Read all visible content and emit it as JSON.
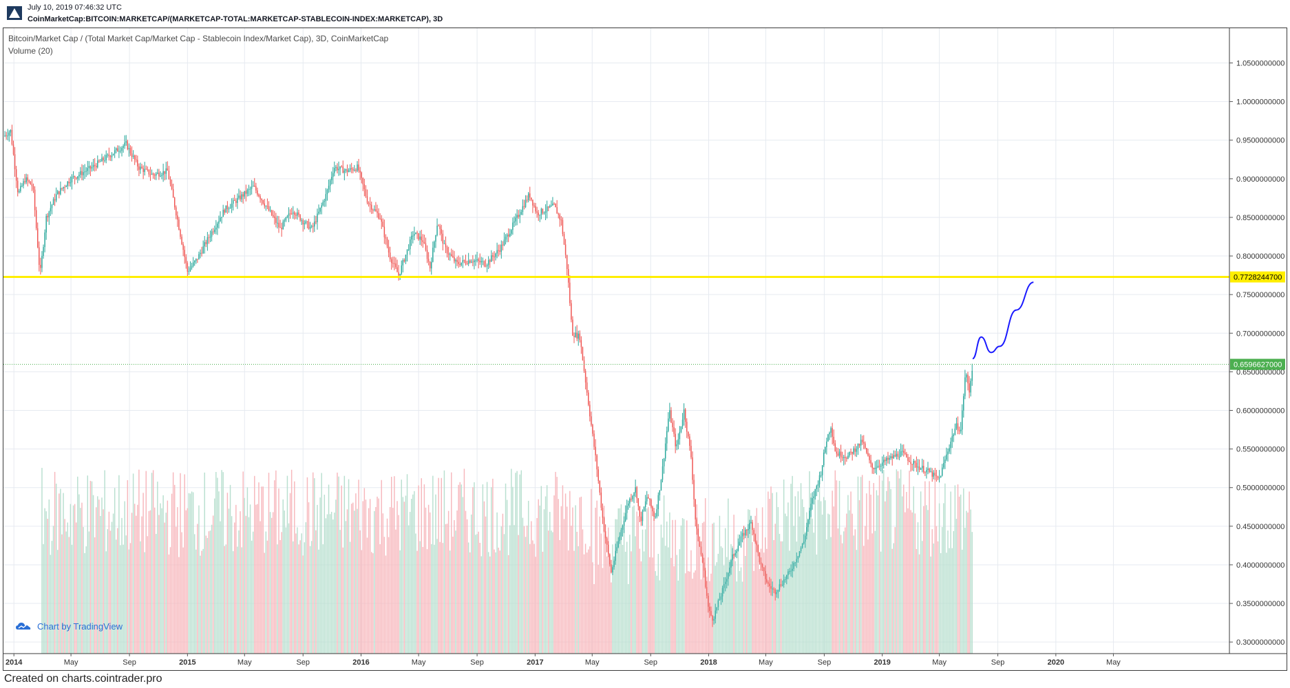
{
  "header": {
    "date": "July 10, 2019 07:46:32 UTC",
    "symbol": "CoinMarketCap:BITCOIN:MARKETCAP/(MARKETCAP-TOTAL:MARKETCAP-STABLECOIN-INDEX:MARKETCAP), 3D"
  },
  "chart": {
    "title": "Bitcoin/Market Cap / (Total Market Cap/Market Cap - Stablecoin Index/Market Cap), 3D, CoinMarketCap",
    "volume_label": "Volume (20)",
    "attribution": "Chart by TradingView"
  },
  "footer": {
    "text": "Created on charts.cointrader.pro"
  },
  "colors": {
    "up": "#26a69a",
    "down": "#ef5350",
    "volume_up": "#b8dfcf",
    "volume_down": "#f7b7bc",
    "horizontal_line": "#ffee00",
    "projection": "#1a1aff",
    "current_price_badge": "#4caf50",
    "grid": "#e6eaf0"
  },
  "icons": {
    "logo": "tradingview-logo-icon",
    "attribution": "tradingview-cloud-icon"
  },
  "chart_data": {
    "type": "candlestick",
    "title": "Bitcoin/Market Cap / (Total Market Cap/Market Cap - Stablecoin Index/Market Cap), 3D, CoinMarketCap",
    "x_tick_labels": [
      "2014",
      "May",
      "Sep",
      "2015",
      "May",
      "Sep",
      "2016",
      "May",
      "Sep",
      "2017",
      "May",
      "Sep",
      "2018",
      "May",
      "Sep",
      "2019",
      "May",
      "Sep",
      "2020",
      "May"
    ],
    "x_ticks": [
      "2014-01-01",
      "2014-05-01",
      "2014-09-01",
      "2015-01-01",
      "2015-05-01",
      "2015-09-01",
      "2016-01-01",
      "2016-05-01",
      "2016-09-01",
      "2017-01-01",
      "2017-05-01",
      "2017-09-01",
      "2018-01-01",
      "2018-05-01",
      "2018-09-01",
      "2019-01-01",
      "2019-05-01",
      "2019-09-01",
      "2020-01-01",
      "2020-05-01"
    ],
    "x_range": [
      "2013-12-10",
      "2020-12-31"
    ],
    "y_tick_labels": [
      "1.0500000000",
      "1.0000000000",
      "0.9500000000",
      "0.9000000000",
      "0.8500000000",
      "0.8000000000",
      "0.7500000000",
      "0.7000000000",
      "0.6500000000",
      "0.6000000000",
      "0.5500000000",
      "0.5000000000",
      "0.4500000000",
      "0.4000000000",
      "0.3500000000",
      "0.3000000000"
    ],
    "y_range": [
      0.285,
      1.095
    ],
    "price_path": [
      [
        "2013-12-10",
        0.955
      ],
      [
        "2013-12-25",
        0.962
      ],
      [
        "2014-01-10",
        0.88
      ],
      [
        "2014-01-25",
        0.9
      ],
      [
        "2014-02-10",
        0.89
      ],
      [
        "2014-02-25",
        0.775
      ],
      [
        "2014-03-10",
        0.85
      ],
      [
        "2014-04-01",
        0.88
      ],
      [
        "2014-05-01",
        0.9
      ],
      [
        "2014-06-15",
        0.915
      ],
      [
        "2014-07-20",
        0.93
      ],
      [
        "2014-08-25",
        0.945
      ],
      [
        "2014-09-20",
        0.915
      ],
      [
        "2014-10-20",
        0.905
      ],
      [
        "2014-11-20",
        0.91
      ],
      [
        "2014-12-10",
        0.85
      ],
      [
        "2015-01-01",
        0.78
      ],
      [
        "2015-01-20",
        0.795
      ],
      [
        "2015-02-20",
        0.83
      ],
      [
        "2015-03-20",
        0.86
      ],
      [
        "2015-04-20",
        0.875
      ],
      [
        "2015-05-20",
        0.89
      ],
      [
        "2015-06-20",
        0.86
      ],
      [
        "2015-07-15",
        0.835
      ],
      [
        "2015-08-10",
        0.86
      ],
      [
        "2015-09-01",
        0.845
      ],
      [
        "2015-09-20",
        0.835
      ],
      [
        "2015-10-20",
        0.88
      ],
      [
        "2015-11-05",
        0.915
      ],
      [
        "2015-12-01",
        0.91
      ],
      [
        "2015-12-25",
        0.915
      ],
      [
        "2016-01-15",
        0.87
      ],
      [
        "2016-02-10",
        0.85
      ],
      [
        "2016-03-01",
        0.8
      ],
      [
        "2016-03-20",
        0.775
      ],
      [
        "2016-04-20",
        0.83
      ],
      [
        "2016-05-10",
        0.82
      ],
      [
        "2016-05-25",
        0.785
      ],
      [
        "2016-06-10",
        0.845
      ],
      [
        "2016-06-25",
        0.81
      ],
      [
        "2016-07-20",
        0.79
      ],
      [
        "2016-08-20",
        0.795
      ],
      [
        "2016-09-20",
        0.79
      ],
      [
        "2016-10-20",
        0.81
      ],
      [
        "2016-11-20",
        0.845
      ],
      [
        "2016-12-20",
        0.88
      ],
      [
        "2017-01-05",
        0.855
      ],
      [
        "2017-01-25",
        0.86
      ],
      [
        "2017-02-10",
        0.865
      ],
      [
        "2017-02-25",
        0.845
      ],
      [
        "2017-03-10",
        0.78
      ],
      [
        "2017-03-20",
        0.7
      ],
      [
        "2017-04-05",
        0.695
      ],
      [
        "2017-04-25",
        0.6
      ],
      [
        "2017-05-10",
        0.53
      ],
      [
        "2017-05-25",
        0.45
      ],
      [
        "2017-06-10",
        0.39
      ],
      [
        "2017-06-25",
        0.43
      ],
      [
        "2017-07-15",
        0.48
      ],
      [
        "2017-08-01",
        0.5
      ],
      [
        "2017-08-10",
        0.455
      ],
      [
        "2017-08-25",
        0.49
      ],
      [
        "2017-09-10",
        0.46
      ],
      [
        "2017-09-25",
        0.52
      ],
      [
        "2017-10-10",
        0.6
      ],
      [
        "2017-10-25",
        0.55
      ],
      [
        "2017-11-10",
        0.6
      ],
      [
        "2017-11-25",
        0.54
      ],
      [
        "2017-12-05",
        0.45
      ],
      [
        "2017-12-20",
        0.4
      ],
      [
        "2018-01-01",
        0.34
      ],
      [
        "2018-01-10",
        0.33
      ],
      [
        "2018-02-01",
        0.37
      ],
      [
        "2018-02-20",
        0.41
      ],
      [
        "2018-03-15",
        0.44
      ],
      [
        "2018-04-01",
        0.455
      ],
      [
        "2018-04-20",
        0.4
      ],
      [
        "2018-05-05",
        0.375
      ],
      [
        "2018-05-20",
        0.365
      ],
      [
        "2018-06-20",
        0.39
      ],
      [
        "2018-07-20",
        0.43
      ],
      [
        "2018-08-05",
        0.48
      ],
      [
        "2018-08-25",
        0.52
      ],
      [
        "2018-09-05",
        0.56
      ],
      [
        "2018-09-15",
        0.58
      ],
      [
        "2018-09-25",
        0.545
      ],
      [
        "2018-10-20",
        0.54
      ],
      [
        "2018-11-20",
        0.56
      ],
      [
        "2018-12-10",
        0.525
      ],
      [
        "2019-01-10",
        0.535
      ],
      [
        "2019-02-10",
        0.545
      ],
      [
        "2019-03-10",
        0.53
      ],
      [
        "2019-04-10",
        0.52
      ],
      [
        "2019-04-30",
        0.51
      ],
      [
        "2019-05-10",
        0.53
      ],
      [
        "2019-05-25",
        0.56
      ],
      [
        "2019-06-05",
        0.58
      ],
      [
        "2019-06-15",
        0.575
      ],
      [
        "2019-06-25",
        0.65
      ],
      [
        "2019-07-03",
        0.625
      ],
      [
        "2019-07-10",
        0.6597
      ]
    ],
    "horizontal_line": {
      "value": 0.77282447,
      "label": "0.7728244700"
    },
    "current_price": {
      "value": 0.6596627,
      "label": "0.6596627000"
    },
    "projection": [
      [
        "2019-07-10",
        0.667
      ],
      [
        "2019-07-28",
        0.695
      ],
      [
        "2019-08-18",
        0.675
      ],
      [
        "2019-09-05",
        0.683
      ],
      [
        "2019-10-10",
        0.73
      ],
      [
        "2019-11-15",
        0.766
      ]
    ]
  }
}
